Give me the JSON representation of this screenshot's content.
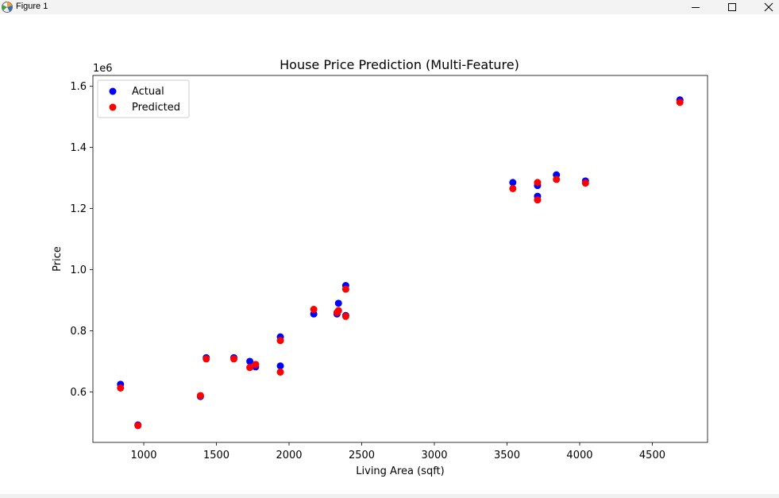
{
  "window": {
    "title": "Figure 1",
    "icons": [
      "matplotlib-icon",
      "minimize-icon",
      "maximize-icon",
      "close-icon"
    ]
  },
  "chart_data": {
    "type": "scatter",
    "title": "House Price Prediction (Multi-Feature)",
    "xlabel": "Living Area (sqft)",
    "ylabel": "Price",
    "y_offset_label": "1e6",
    "xlim": [
      650,
      4880
    ],
    "ylim": [
      0.435,
      1.635
    ],
    "xticks": [
      1000,
      1500,
      2000,
      2500,
      3000,
      3500,
      4000,
      4500
    ],
    "xtick_labels": [
      "1000",
      "1500",
      "2000",
      "2500",
      "3000",
      "3500",
      "4000",
      "4500"
    ],
    "yticks": [
      0.6,
      0.8,
      1.0,
      1.2,
      1.4,
      1.6
    ],
    "ytick_labels": [
      "0.6",
      "0.8",
      "1.0",
      "1.2",
      "1.4",
      "1.6"
    ],
    "grid": false,
    "legend_position": "upper-left",
    "series": [
      {
        "name": "Actual",
        "color": "#0000ff",
        "points": [
          [
            840,
            0.625
          ],
          [
            960,
            0.492
          ],
          [
            1390,
            0.585
          ],
          [
            1430,
            0.712
          ],
          [
            1620,
            0.712
          ],
          [
            1730,
            0.7
          ],
          [
            1770,
            0.682
          ],
          [
            1940,
            0.685
          ],
          [
            1940,
            0.78
          ],
          [
            2170,
            0.855
          ],
          [
            2330,
            0.855
          ],
          [
            2340,
            0.89
          ],
          [
            2390,
            0.85
          ],
          [
            2390,
            0.948
          ],
          [
            3540,
            1.285
          ],
          [
            3710,
            1.275
          ],
          [
            3710,
            1.24
          ],
          [
            3840,
            1.31
          ],
          [
            4040,
            1.29
          ],
          [
            4690,
            1.555
          ]
        ]
      },
      {
        "name": "Predicted",
        "color": "#ff0000",
        "points": [
          [
            840,
            0.613
          ],
          [
            960,
            0.49
          ],
          [
            1390,
            0.588
          ],
          [
            1430,
            0.708
          ],
          [
            1620,
            0.708
          ],
          [
            1730,
            0.68
          ],
          [
            1770,
            0.69
          ],
          [
            1940,
            0.665
          ],
          [
            1940,
            0.768
          ],
          [
            2170,
            0.87
          ],
          [
            2330,
            0.86
          ],
          [
            2340,
            0.866
          ],
          [
            2390,
            0.847
          ],
          [
            2390,
            0.936
          ],
          [
            3540,
            1.265
          ],
          [
            3710,
            1.285
          ],
          [
            3710,
            1.228
          ],
          [
            3840,
            1.295
          ],
          [
            4040,
            1.283
          ],
          [
            4690,
            1.547
          ]
        ]
      }
    ]
  }
}
